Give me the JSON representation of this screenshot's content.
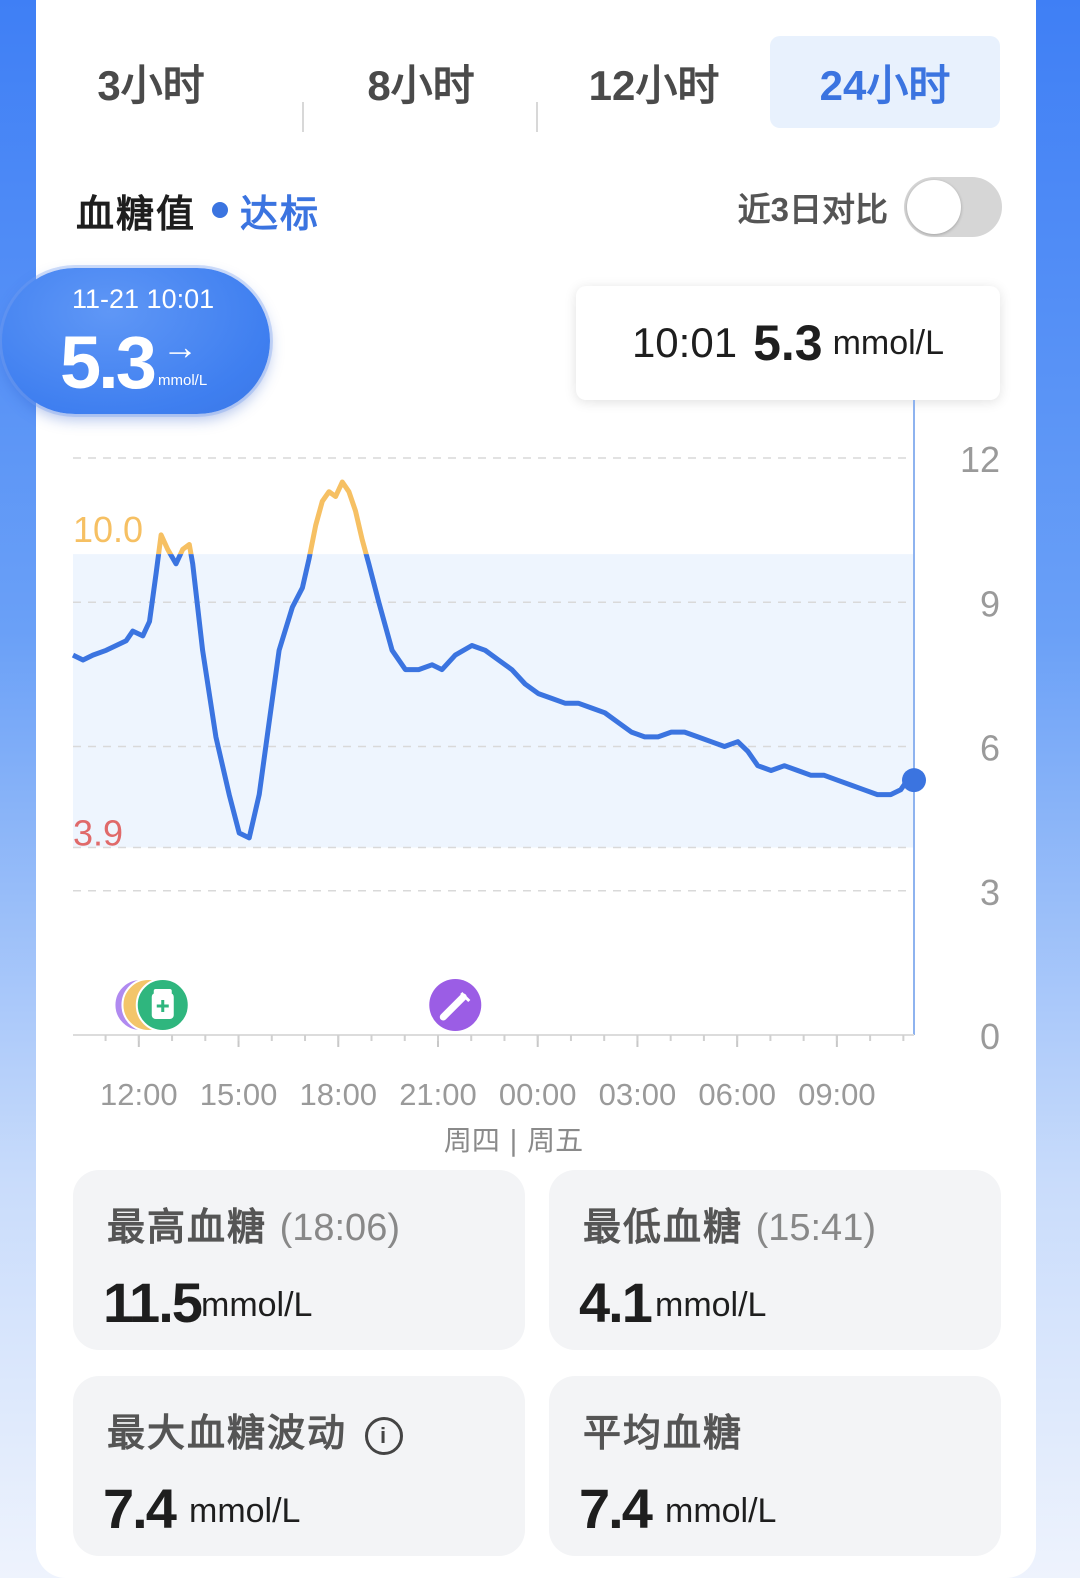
{
  "tabs": [
    {
      "label": "3小时"
    },
    {
      "label": "8小时"
    },
    {
      "label": "12小时"
    },
    {
      "label": "24小时"
    }
  ],
  "active_tab": 3,
  "section": {
    "title": "血糖值",
    "status": "达标"
  },
  "compare": {
    "label": "近3日对比",
    "enabled": false
  },
  "current": {
    "time": "11-21 10:01",
    "value": "5.3",
    "arrow": "→",
    "unit": "mmol/L"
  },
  "tooltip": {
    "time": "10:01",
    "value": "5.3",
    "unit": "mmol/L"
  },
  "chart_data": {
    "type": "line",
    "x_unit": "hours elapsed from 10:01 (Thursday)",
    "y_ticks": [
      "12",
      "9",
      "6",
      "3",
      "0"
    ],
    "x_ticks": [
      "12:00",
      "15:00",
      "18:00",
      "21:00",
      "00:00",
      "03:00",
      "06:00",
      "09:00"
    ],
    "day_label": "周四 | 周五",
    "ylim": [
      0,
      12
    ],
    "target_range": {
      "low": 3.9,
      "high": 10.0,
      "low_label": "3.9",
      "high_label": "10.0"
    },
    "colors": {
      "line": "#3b74e0",
      "high": "#f6c063",
      "low_label": "#e06a6a",
      "range_fill": "#eef5fe"
    },
    "series": [
      {
        "points": [
          [
            0.0,
            7.9
          ],
          [
            0.3,
            7.8
          ],
          [
            0.6,
            7.9
          ],
          [
            1.0,
            8.0
          ],
          [
            1.3,
            8.1
          ],
          [
            1.6,
            8.2
          ],
          [
            1.8,
            8.4
          ],
          [
            2.1,
            8.3
          ],
          [
            2.3,
            8.6
          ],
          [
            2.5,
            9.6
          ],
          [
            2.65,
            10.4
          ],
          [
            2.85,
            10.1
          ],
          [
            3.1,
            9.8
          ],
          [
            3.3,
            10.1
          ],
          [
            3.5,
            10.2
          ],
          [
            3.6,
            9.8
          ],
          [
            3.9,
            8.0
          ],
          [
            4.3,
            6.2
          ],
          [
            4.7,
            5.0
          ],
          [
            5.0,
            4.2
          ],
          [
            5.3,
            4.1
          ],
          [
            5.6,
            5.0
          ],
          [
            5.9,
            6.5
          ],
          [
            6.2,
            8.0
          ],
          [
            6.6,
            8.9
          ],
          [
            6.9,
            9.3
          ],
          [
            7.1,
            9.9
          ],
          [
            7.3,
            10.6
          ],
          [
            7.5,
            11.1
          ],
          [
            7.7,
            11.3
          ],
          [
            7.9,
            11.2
          ],
          [
            8.1,
            11.5
          ],
          [
            8.3,
            11.3
          ],
          [
            8.5,
            10.9
          ],
          [
            8.7,
            10.3
          ],
          [
            8.9,
            9.8
          ],
          [
            9.2,
            9.0
          ],
          [
            9.6,
            8.0
          ],
          [
            10.0,
            7.6
          ],
          [
            10.4,
            7.6
          ],
          [
            10.8,
            7.7
          ],
          [
            11.1,
            7.6
          ],
          [
            11.5,
            7.9
          ],
          [
            12.0,
            8.1
          ],
          [
            12.4,
            8.0
          ],
          [
            12.8,
            7.8
          ],
          [
            13.2,
            7.6
          ],
          [
            13.6,
            7.3
          ],
          [
            14.0,
            7.1
          ],
          [
            14.4,
            7.0
          ],
          [
            14.8,
            6.9
          ],
          [
            15.2,
            6.9
          ],
          [
            15.6,
            6.8
          ],
          [
            16.0,
            6.7
          ],
          [
            16.4,
            6.5
          ],
          [
            16.8,
            6.3
          ],
          [
            17.2,
            6.2
          ],
          [
            17.6,
            6.2
          ],
          [
            18.0,
            6.3
          ],
          [
            18.4,
            6.3
          ],
          [
            18.8,
            6.2
          ],
          [
            19.2,
            6.1
          ],
          [
            19.6,
            6.0
          ],
          [
            20.0,
            6.1
          ],
          [
            20.3,
            5.9
          ],
          [
            20.6,
            5.6
          ],
          [
            21.0,
            5.5
          ],
          [
            21.4,
            5.6
          ],
          [
            21.8,
            5.5
          ],
          [
            22.2,
            5.4
          ],
          [
            22.6,
            5.4
          ],
          [
            23.0,
            5.3
          ],
          [
            23.4,
            5.2
          ],
          [
            23.8,
            5.1
          ],
          [
            24.2,
            5.0
          ],
          [
            24.6,
            5.0
          ],
          [
            24.9,
            5.1
          ],
          [
            25.1,
            5.3
          ],
          [
            25.3,
            5.3
          ]
        ]
      }
    ],
    "markers": [
      {
        "icon": "meal-icon",
        "x": 2.45
      },
      {
        "icon": "medicine-icon",
        "x": 2.7
      },
      {
        "icon": "insulin-icon",
        "x": 11.5
      }
    ]
  },
  "stats": [
    {
      "label": "最高血糖",
      "time": "(18:06)",
      "value": "11.5",
      "unit": "mmol/L"
    },
    {
      "label": "最低血糖",
      "time": "(15:41)",
      "value": "4.1",
      "unit": "mmol/L"
    },
    {
      "label": "最大血糖波动",
      "time": "",
      "value": "7.4",
      "unit": "mmol/L",
      "info": "i"
    },
    {
      "label": "平均血糖",
      "time": "",
      "value": "7.4",
      "unit": "mmol/L"
    }
  ]
}
